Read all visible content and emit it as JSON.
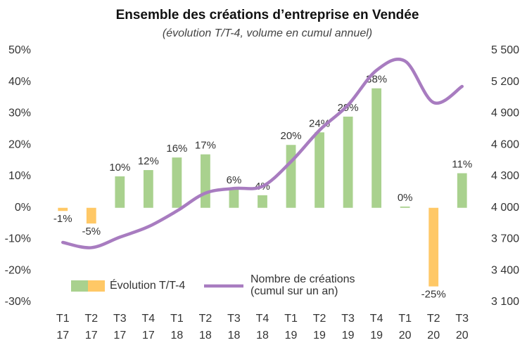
{
  "chart_data": {
    "type": "combo",
    "title": "Ensemble des créations d’entreprise en Vendée",
    "subtitle": "(évolution T/T-4, volume en cumul annuel)",
    "categories": [
      [
        "T1",
        "17"
      ],
      [
        "T2",
        "17"
      ],
      [
        "T3",
        "17"
      ],
      [
        "T4",
        "17"
      ],
      [
        "T1",
        "18"
      ],
      [
        "T2",
        "18"
      ],
      [
        "T3",
        "18"
      ],
      [
        "T4",
        "18"
      ],
      [
        "T1",
        "19"
      ],
      [
        "T2",
        "19"
      ],
      [
        "T3",
        "19"
      ],
      [
        "T4",
        "19"
      ],
      [
        "T1",
        "20"
      ],
      [
        "T2",
        "20"
      ],
      [
        "T3",
        "20"
      ]
    ],
    "series": [
      {
        "name": "Évolution T/T-4",
        "type": "bar",
        "color": "#a9d18e",
        "negative_color": "#ffc866",
        "values": [
          -1,
          -5,
          10,
          12,
          16,
          17,
          6,
          4,
          20,
          24,
          29,
          38,
          0.4,
          -25,
          11
        ],
        "value_labels": [
          "-1%",
          "-5%",
          "10%",
          "12%",
          "16%",
          "17%",
          "6%",
          "4%",
          "20%",
          "24%",
          "29%",
          "38%",
          "0%",
          "-25%",
          "11%"
        ]
      },
      {
        "name": [
          "Nombre de créations",
          "(cumul sur un an)"
        ],
        "type": "line",
        "axis": "y2",
        "color": "#a87cc0",
        "values": [
          3670,
          3620,
          3720,
          3820,
          3970,
          4140,
          4185,
          4205,
          4440,
          4740,
          4980,
          5312,
          5400,
          5004,
          5158
        ]
      }
    ],
    "ylim": [
      -30,
      50
    ],
    "yticks": [
      {
        "value": -30,
        "label": "-30%"
      },
      {
        "value": -20,
        "label": "-20%"
      },
      {
        "value": -10,
        "label": "-10%"
      },
      {
        "value": 0,
        "label": "0%"
      },
      {
        "value": 10,
        "label": "10%"
      },
      {
        "value": 20,
        "label": "20%"
      },
      {
        "value": 30,
        "label": "30%"
      },
      {
        "value": 40,
        "label": "40%"
      },
      {
        "value": 50,
        "label": "50%"
      }
    ],
    "y2lim": [
      3100,
      5500
    ],
    "y2ticks": [
      {
        "value": 3100,
        "label": "3 100"
      },
      {
        "value": 3400,
        "label": "3 400"
      },
      {
        "value": 3700,
        "label": "3 700"
      },
      {
        "value": 4000,
        "label": "4 000"
      },
      {
        "value": 4300,
        "label": "4 300"
      },
      {
        "value": 4600,
        "label": "4 600"
      },
      {
        "value": 4900,
        "label": "4 900"
      },
      {
        "value": 5200,
        "label": "5 200"
      },
      {
        "value": 5500,
        "label": "5 500"
      }
    ],
    "y2_color": "#8e5ea2",
    "grid": false
  }
}
